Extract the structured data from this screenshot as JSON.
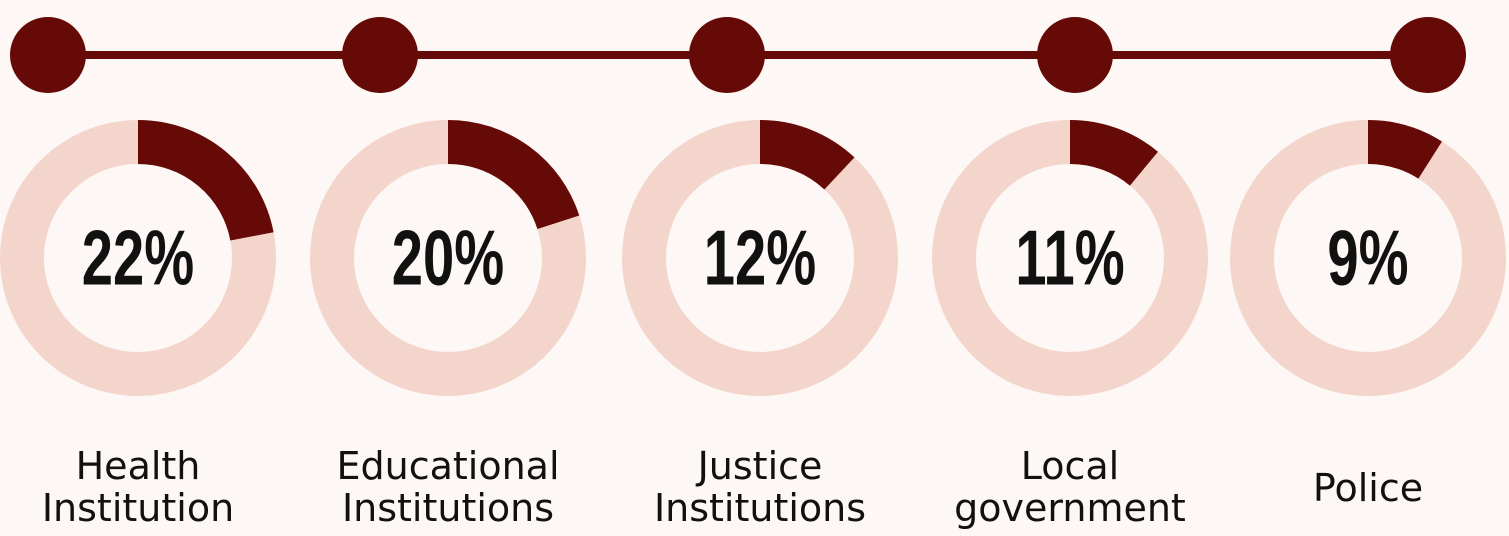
{
  "chart_data": {
    "type": "donut",
    "categories": [
      [
        "Health",
        "Institution"
      ],
      [
        "Educational",
        "Institutions"
      ],
      [
        "Justice",
        "Institutions"
      ],
      [
        "Local",
        "government"
      ],
      [
        "Police"
      ]
    ],
    "values": [
      22,
      20,
      12,
      11,
      9
    ],
    "value_labels": [
      "22%",
      "20%",
      "12%",
      "11%",
      "9%"
    ],
    "color": "#650a06",
    "track_color": "#f4d5cb"
  }
}
